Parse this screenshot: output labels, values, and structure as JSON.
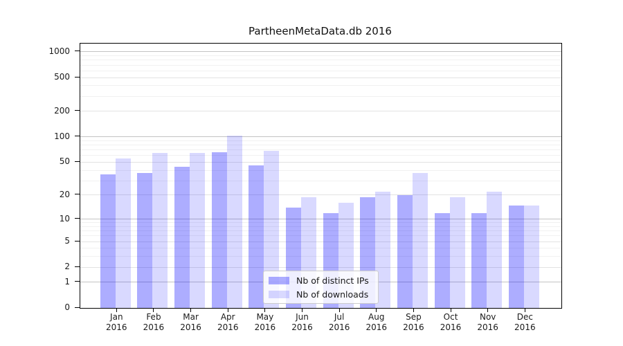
{
  "title": "PartheenMetaData.db 2016",
  "chart_data": {
    "type": "bar",
    "title": "PartheenMetaData.db 2016",
    "categories": [
      "Jan 2016",
      "Feb 2016",
      "Mar 2016",
      "Apr 2016",
      "May 2016",
      "Jun 2016",
      "Jul 2016",
      "Aug 2016",
      "Sep 2016",
      "Oct 2016",
      "Nov 2016",
      "Dec 2016"
    ],
    "series": [
      {
        "name": "Nb of distinct IPs",
        "values": [
          36,
          37,
          44,
          66,
          46,
          14,
          12,
          19,
          20,
          12,
          12,
          15
        ],
        "color": "rgba(0,0,255,0.32)",
        "color_hex": "#aaaaf2"
      },
      {
        "name": "Nb of downloads",
        "values": [
          55,
          65,
          65,
          104,
          68,
          19,
          16,
          22,
          37,
          19,
          22,
          15
        ],
        "color": "rgba(0,0,255,0.15)",
        "color_hex": "#d9d9f8"
      }
    ],
    "xlabel": "",
    "ylabel": "",
    "yticks": [
      0,
      1,
      2,
      5,
      10,
      20,
      50,
      100,
      200,
      500,
      1000
    ],
    "scale": "log10(1+v)",
    "ylim": [
      0,
      1240
    ],
    "grid": true,
    "legend_position": "lower center"
  }
}
